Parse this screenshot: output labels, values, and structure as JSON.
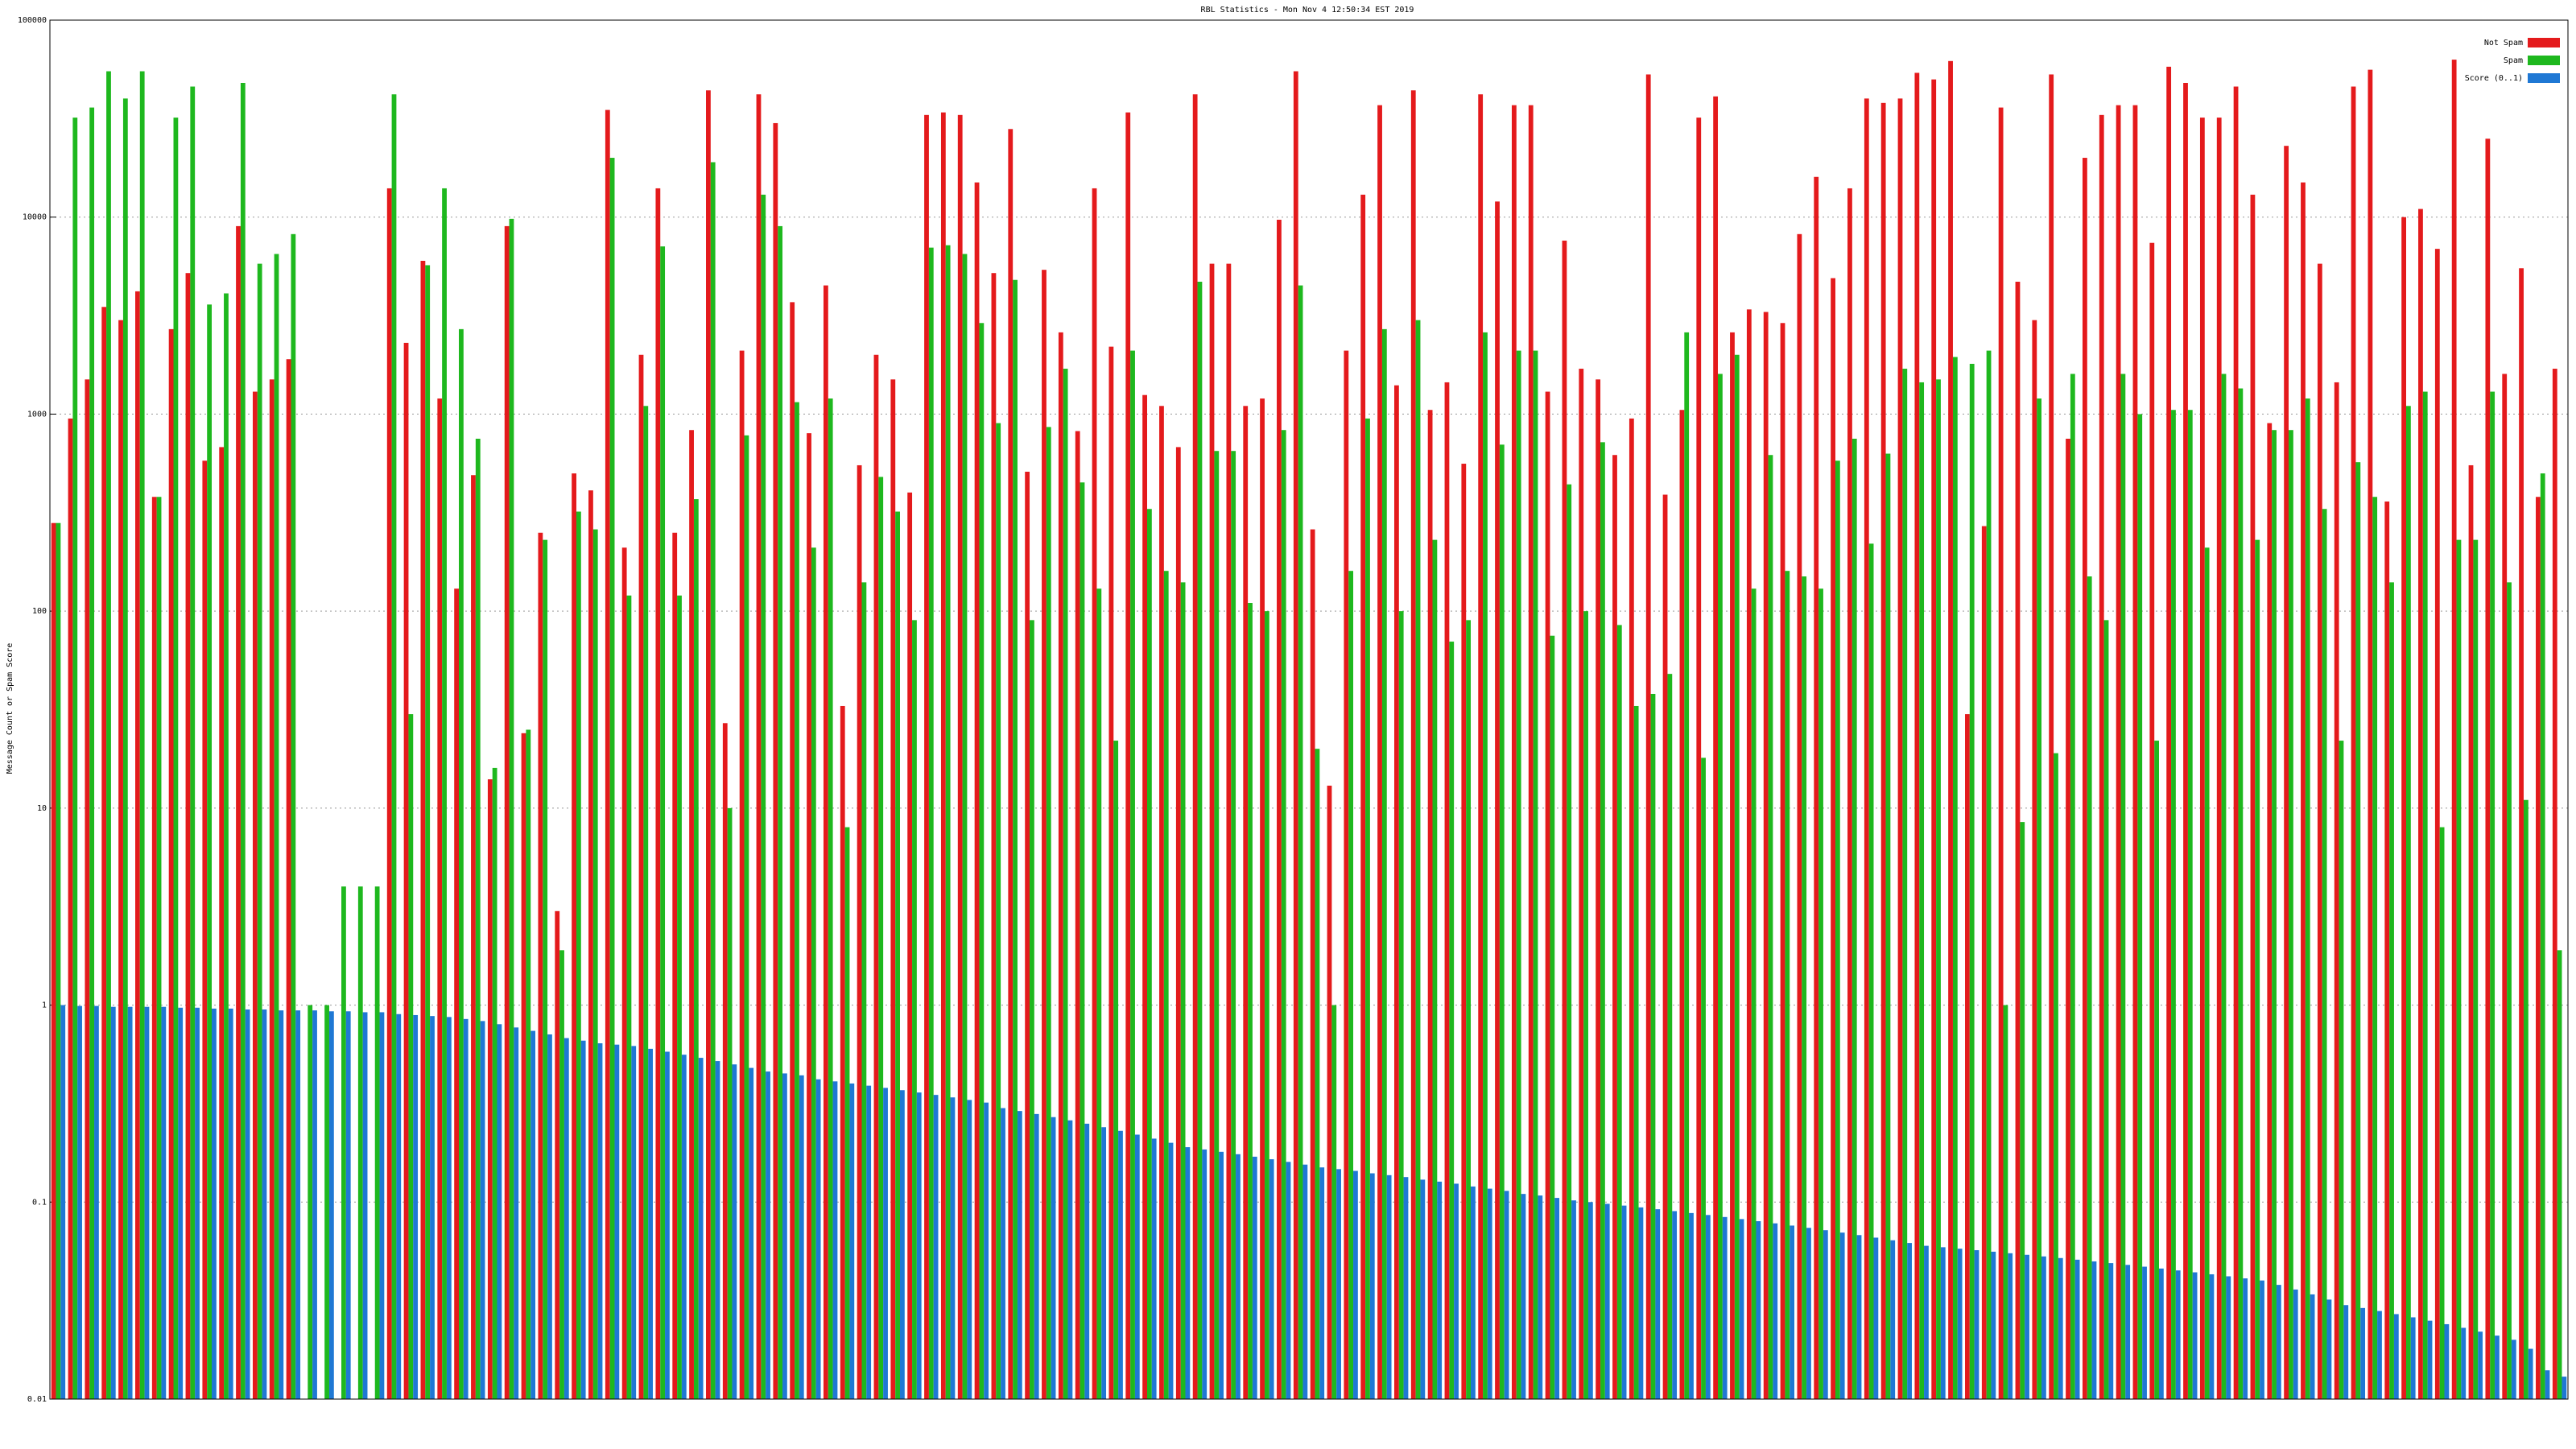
{
  "chart_data": {
    "type": "bar",
    "title": "RBL Statistics - Mon Nov 4 12:50:34 EST 2019",
    "y_label": "Message Count or Spam Score",
    "log_scale": true,
    "grid": true,
    "legend": "top-right",
    "ylim": [
      0.01,
      100000
    ],
    "yticks": [
      0.01,
      0.1,
      1,
      10,
      100,
      1000,
      10000,
      100000
    ],
    "categories": [
      null,
      null,
      null,
      null,
      null,
      null,
      null,
      null,
      null,
      null,
      null,
      null,
      null,
      null,
      null,
      null,
      null,
      null,
      null,
      null,
      null,
      null,
      null,
      null,
      null,
      null,
      null,
      null,
      null,
      null,
      null,
      null,
      null,
      null,
      null,
      null,
      null,
      null,
      null,
      null,
      null,
      null,
      null,
      null,
      null,
      null,
      null,
      null,
      null,
      null,
      null,
      null,
      null,
      null,
      null,
      null,
      null,
      null,
      null,
      null,
      null,
      null,
      null,
      null,
      null,
      null,
      null,
      null,
      null,
      null,
      null,
      null,
      null,
      null,
      null,
      null,
      null,
      null,
      null,
      null,
      null,
      null,
      null,
      null,
      null,
      null,
      null,
      null,
      null,
      null,
      null,
      null,
      null,
      null,
      null,
      null,
      null,
      null,
      null,
      null,
      null,
      null,
      null,
      null,
      null,
      null,
      null,
      null,
      null,
      null,
      null,
      null,
      null,
      null,
      null,
      null,
      null,
      null,
      null,
      null,
      null,
      null,
      null,
      null,
      null,
      null,
      null,
      null,
      null,
      null,
      null,
      null,
      null,
      null,
      null,
      null,
      null,
      null,
      null,
      null,
      null,
      null,
      null,
      null,
      null,
      null,
      null,
      null,
      null,
      null
    ],
    "series": [
      {
        "name": "Not Spam",
        "color": "#e41a1c",
        "values": [
          280,
          950,
          1500,
          3500,
          3000,
          4200,
          380,
          2700,
          5200,
          580,
          680,
          9000,
          1300,
          1500,
          1900,
          null,
          null,
          null,
          null,
          null,
          14000,
          2300,
          6000,
          1200,
          130,
          490,
          14,
          9000,
          24,
          250,
          3,
          500,
          410,
          35000,
          210,
          2000,
          14000,
          250,
          830,
          44000,
          27,
          2100,
          42000,
          30000,
          3700,
          800,
          4500,
          33,
          550,
          2000,
          1500,
          400,
          33000,
          34000,
          33000,
          15000,
          5200,
          28000,
          510,
          5400,
          2600,
          820,
          14000,
          2200,
          34000,
          1250,
          1100,
          680,
          42000,
          5800,
          5800,
          1100,
          1200,
          9700,
          55000,
          260,
          13,
          2100,
          13000,
          37000,
          1400,
          44000,
          1050,
          1450,
          560,
          42000,
          12000,
          37000,
          37000,
          1300,
          7600,
          1700,
          1500,
          620,
          950,
          53000,
          390,
          1050,
          32000,
          41000,
          2600,
          3400,
          3300,
          2900,
          8200,
          16000,
          4900,
          14000,
          40000,
          38000,
          40000,
          54000,
          50000,
          62000,
          30,
          270,
          36000,
          4700,
          3000,
          53000,
          750,
          20000,
          33000,
          37000,
          37000,
          7400,
          58000,
          48000,
          32000,
          32000,
          46000,
          13000,
          900,
          23000,
          15000,
          5800,
          1450,
          46000,
          56000,
          360,
          10000,
          11000,
          6900,
          63000,
          550,
          25000,
          1600,
          5500,
          380,
          1700
        ]
      },
      {
        "name": "Spam",
        "color": "#1eb81e",
        "values": [
          280,
          32000,
          36000,
          55000,
          40000,
          55000,
          380,
          32000,
          46000,
          3600,
          4100,
          48000,
          5800,
          6500,
          8200,
          1,
          1,
          4,
          4,
          4,
          42000,
          30,
          5700,
          14000,
          2700,
          750,
          16,
          9800,
          25,
          230,
          1.9,
          320,
          260,
          20000,
          120,
          1100,
          7100,
          120,
          370,
          19000,
          10,
          780,
          13000,
          9000,
          1150,
          210,
          1200,
          8,
          140,
          480,
          320,
          90,
          7000,
          7200,
          6500,
          2900,
          900,
          4800,
          90,
          860,
          1700,
          450,
          130,
          22,
          2100,
          330,
          160,
          140,
          4700,
          650,
          650,
          110,
          100,
          830,
          4500,
          20,
          1,
          160,
          950,
          2700,
          100,
          3000,
          230,
          70,
          90,
          2600,
          700,
          2100,
          2100,
          75,
          440,
          100,
          720,
          85,
          33,
          38,
          48,
          2600,
          18,
          1600,
          2000,
          130,
          620,
          160,
          150,
          130,
          580,
          750,
          220,
          630,
          1700,
          1450,
          1500,
          1950,
          1800,
          2100,
          1,
          8.5,
          1200,
          19,
          1600,
          150,
          90,
          1600,
          1000,
          22,
          1050,
          1050,
          210,
          1600,
          1350,
          230,
          830,
          830,
          1200,
          330,
          22,
          570,
          380,
          140,
          1100,
          1300,
          8,
          230,
          230,
          1300,
          140,
          11,
          500,
          1.9
        ]
      },
      {
        "name": "Score (0..1)",
        "color": "#1f78d4",
        "values": [
          1,
          0.99,
          0.99,
          0.98,
          0.98,
          0.98,
          0.98,
          0.97,
          0.97,
          0.96,
          0.96,
          0.95,
          0.95,
          0.94,
          0.94,
          0.94,
          0.93,
          0.93,
          0.92,
          0.92,
          0.9,
          0.89,
          0.88,
          0.87,
          0.85,
          0.83,
          0.8,
          0.77,
          0.74,
          0.71,
          0.68,
          0.66,
          0.64,
          0.63,
          0.62,
          0.6,
          0.58,
          0.56,
          0.54,
          0.52,
          0.5,
          0.48,
          0.46,
          0.45,
          0.44,
          0.42,
          0.41,
          0.4,
          0.39,
          0.38,
          0.37,
          0.36,
          0.35,
          0.34,
          0.33,
          0.32,
          0.3,
          0.29,
          0.28,
          0.27,
          0.26,
          0.25,
          0.24,
          0.23,
          0.22,
          0.21,
          0.2,
          0.19,
          0.185,
          0.18,
          0.175,
          0.17,
          0.165,
          0.16,
          0.155,
          0.15,
          0.147,
          0.144,
          0.14,
          0.137,
          0.134,
          0.13,
          0.127,
          0.124,
          0.12,
          0.117,
          0.114,
          0.11,
          0.108,
          0.105,
          0.102,
          0.1,
          0.098,
          0.096,
          0.094,
          0.092,
          0.09,
          0.088,
          0.086,
          0.084,
          0.082,
          0.08,
          0.078,
          0.076,
          0.074,
          0.072,
          0.07,
          0.068,
          0.066,
          0.064,
          0.062,
          0.06,
          0.059,
          0.058,
          0.057,
          0.056,
          0.055,
          0.054,
          0.053,
          0.052,
          0.051,
          0.05,
          0.049,
          0.048,
          0.047,
          0.046,
          0.045,
          0.044,
          0.043,
          0.042,
          0.041,
          0.04,
          0.038,
          0.036,
          0.034,
          0.032,
          0.03,
          0.029,
          0.028,
          0.027,
          0.026,
          0.025,
          0.024,
          0.023,
          0.022,
          0.021,
          0.02,
          0.018,
          0.014,
          0.013
        ]
      }
    ]
  }
}
